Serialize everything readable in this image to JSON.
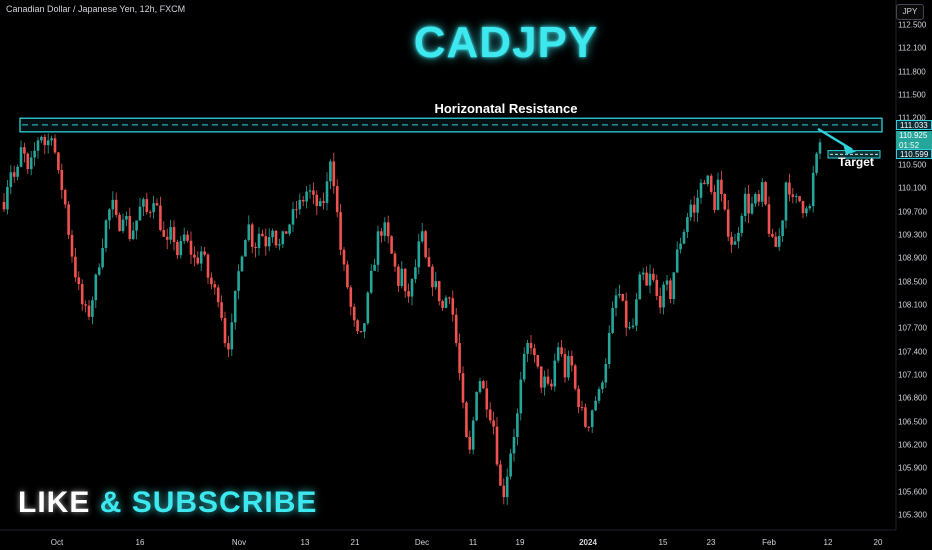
{
  "header": {
    "symbol_info": "Canadian Dollar / Japanese Yen, 12h, FXCM",
    "title": "CADJPY",
    "currency": "JPY"
  },
  "annotations": {
    "resistance_label": "Horizonatal Resistance",
    "target_label": "Target",
    "cta_like": "LIKE",
    "cta_amp": "&",
    "cta_subscribe": "SUBSCRIBE"
  },
  "price_tags": {
    "resistance": "111.033",
    "current": "110.925",
    "countdown": "01:52",
    "target": "110.599"
  },
  "colors": {
    "bull": "#26a69a",
    "bear": "#ef5350",
    "accent": "#3de8ef",
    "background": "#000000"
  },
  "chart_data": {
    "type": "candlestick",
    "y_ticks": [
      "112.500",
      "112.100",
      "111.800",
      "111.500",
      "111.200",
      "110.900",
      "110.500",
      "110.100",
      "109.700",
      "109.300",
      "108.900",
      "108.500",
      "108.100",
      "107.700",
      "107.400",
      "107.100",
      "106.800",
      "106.500",
      "106.200",
      "105.900",
      "105.600",
      "105.300"
    ],
    "x_ticks": [
      {
        "label": "Oct",
        "bold": false
      },
      {
        "label": "16",
        "bold": false
      },
      {
        "label": "Nov",
        "bold": false
      },
      {
        "label": "13",
        "bold": false
      },
      {
        "label": "21",
        "bold": false
      },
      {
        "label": "Dec",
        "bold": false
      },
      {
        "label": "11",
        "bold": false
      },
      {
        "label": "19",
        "bold": false
      },
      {
        "label": "2024",
        "bold": true
      },
      {
        "label": "15",
        "bold": false
      },
      {
        "label": "23",
        "bold": false
      },
      {
        "label": "Feb",
        "bold": false
      },
      {
        "label": "12",
        "bold": false
      },
      {
        "label": "20",
        "bold": false
      }
    ],
    "ylim": [
      105.12,
      112.72
    ],
    "resistance_zone": [
      110.93,
      111.13
    ],
    "resistance_line": 111.033,
    "target_zone": [
      110.56,
      110.64
    ],
    "path": [
      [
        0,
        109.9
      ],
      [
        6,
        110.4
      ],
      [
        12,
        110.2
      ],
      [
        18,
        110.75
      ],
      [
        24,
        110.3
      ],
      [
        30,
        110.6
      ],
      [
        36,
        110.95
      ],
      [
        42,
        110.7
      ],
      [
        48,
        110.95
      ],
      [
        54,
        110.3
      ],
      [
        60,
        110.0
      ],
      [
        66,
        109.3
      ],
      [
        72,
        108.8
      ],
      [
        78,
        108.4
      ],
      [
        84,
        108.2
      ],
      [
        90,
        108.6
      ],
      [
        96,
        109.1
      ],
      [
        102,
        109.6
      ],
      [
        108,
        109.9
      ],
      [
        114,
        109.5
      ],
      [
        120,
        109.8
      ],
      [
        126,
        109.4
      ],
      [
        132,
        109.6
      ],
      [
        138,
        109.9
      ],
      [
        144,
        109.7
      ],
      [
        150,
        110.0
      ],
      [
        156,
        109.6
      ],
      [
        162,
        109.2
      ],
      [
        168,
        109.5
      ],
      [
        174,
        109.1
      ],
      [
        180,
        109.4
      ],
      [
        186,
        109.2
      ],
      [
        192,
        109.0
      ],
      [
        198,
        109.2
      ],
      [
        204,
        108.8
      ],
      [
        210,
        108.6
      ],
      [
        216,
        108.5
      ],
      [
        220,
        107.9
      ],
      [
        226,
        107.8
      ],
      [
        232,
        108.6
      ],
      [
        238,
        109.2
      ],
      [
        244,
        109.6
      ],
      [
        250,
        109.2
      ],
      [
        256,
        109.5
      ],
      [
        262,
        109.3
      ],
      [
        268,
        109.6
      ],
      [
        274,
        109.2
      ],
      [
        280,
        109.4
      ],
      [
        286,
        109.6
      ],
      [
        292,
        109.8
      ],
      [
        298,
        109.9
      ],
      [
        304,
        110.1
      ],
      [
        310,
        109.9
      ],
      [
        316,
        109.8
      ],
      [
        322,
        110.0
      ],
      [
        326,
        110.6
      ],
      [
        330,
        110.2
      ],
      [
        334,
        109.6
      ],
      [
        338,
        109.0
      ],
      [
        342,
        108.8
      ],
      [
        346,
        108.4
      ],
      [
        350,
        108.1
      ],
      [
        354,
        107.9
      ],
      [
        358,
        107.9
      ],
      [
        362,
        108.3
      ],
      [
        366,
        108.7
      ],
      [
        370,
        109.0
      ],
      [
        374,
        109.4
      ],
      [
        378,
        109.5
      ],
      [
        382,
        109.5
      ],
      [
        386,
        109.2
      ],
      [
        390,
        109.0
      ],
      [
        394,
        108.7
      ],
      [
        398,
        108.9
      ],
      [
        402,
        108.4
      ],
      [
        406,
        108.6
      ],
      [
        410,
        108.8
      ],
      [
        414,
        109.2
      ],
      [
        418,
        109.4
      ],
      [
        422,
        109.0
      ],
      [
        426,
        108.8
      ],
      [
        430,
        108.7
      ],
      [
        434,
        108.6
      ],
      [
        438,
        108.3
      ],
      [
        442,
        108.5
      ],
      [
        446,
        108.6
      ],
      [
        450,
        108.1
      ],
      [
        454,
        107.6
      ],
      [
        458,
        107.0
      ],
      [
        462,
        106.4
      ],
      [
        466,
        106.2
      ],
      [
        470,
        106.8
      ],
      [
        474,
        107.4
      ],
      [
        478,
        107.2
      ],
      [
        482,
        107.0
      ],
      [
        486,
        106.8
      ],
      [
        490,
        106.6
      ],
      [
        494,
        106.0
      ],
      [
        498,
        105.5
      ],
      [
        502,
        105.8
      ],
      [
        506,
        106.2
      ],
      [
        510,
        106.5
      ],
      [
        514,
        106.8
      ],
      [
        518,
        107.4
      ],
      [
        522,
        107.7
      ],
      [
        526,
        107.9
      ],
      [
        530,
        107.6
      ],
      [
        534,
        107.4
      ],
      [
        538,
        107.2
      ],
      [
        542,
        107.3
      ],
      [
        546,
        107.0
      ],
      [
        550,
        107.5
      ],
      [
        554,
        107.8
      ],
      [
        558,
        107.6
      ],
      [
        562,
        107.3
      ],
      [
        566,
        107.7
      ],
      [
        570,
        107.2
      ],
      [
        574,
        107.0
      ],
      [
        578,
        106.8
      ],
      [
        582,
        106.6
      ],
      [
        586,
        106.7
      ],
      [
        590,
        107.0
      ],
      [
        594,
        107.0
      ],
      [
        598,
        107.3
      ],
      [
        602,
        107.6
      ],
      [
        606,
        108.0
      ],
      [
        610,
        108.4
      ],
      [
        614,
        108.6
      ],
      [
        618,
        108.4
      ],
      [
        622,
        108.1
      ],
      [
        626,
        108.0
      ],
      [
        630,
        108.1
      ],
      [
        634,
        108.6
      ],
      [
        638,
        108.9
      ],
      [
        642,
        108.6
      ],
      [
        646,
        108.8
      ],
      [
        650,
        108.7
      ],
      [
        654,
        108.4
      ],
      [
        658,
        108.5
      ],
      [
        662,
        108.7
      ],
      [
        666,
        108.5
      ],
      [
        670,
        108.9
      ],
      [
        674,
        109.2
      ],
      [
        678,
        109.4
      ],
      [
        682,
        109.6
      ],
      [
        686,
        109.9
      ],
      [
        690,
        109.7
      ],
      [
        694,
        110.0
      ],
      [
        698,
        110.2
      ],
      [
        702,
        110.3
      ],
      [
        706,
        110.1
      ],
      [
        710,
        109.8
      ],
      [
        714,
        110.2
      ],
      [
        718,
        109.9
      ],
      [
        722,
        109.6
      ],
      [
        726,
        109.4
      ],
      [
        730,
        109.2
      ],
      [
        734,
        109.5
      ],
      [
        738,
        109.8
      ],
      [
        742,
        110.0
      ],
      [
        746,
        109.7
      ],
      [
        750,
        110.0
      ],
      [
        754,
        109.8
      ],
      [
        758,
        110.1
      ],
      [
        762,
        109.8
      ],
      [
        766,
        109.4
      ],
      [
        770,
        109.2
      ],
      [
        774,
        109.3
      ],
      [
        778,
        109.6
      ],
      [
        782,
        110.2
      ],
      [
        786,
        110.1
      ],
      [
        790,
        109.8
      ],
      [
        794,
        110.0
      ],
      [
        798,
        109.8
      ],
      [
        802,
        109.9
      ],
      [
        806,
        109.8
      ],
      [
        810,
        110.4
      ],
      [
        814,
        110.6
      ],
      [
        818,
        110.93
      ]
    ]
  }
}
